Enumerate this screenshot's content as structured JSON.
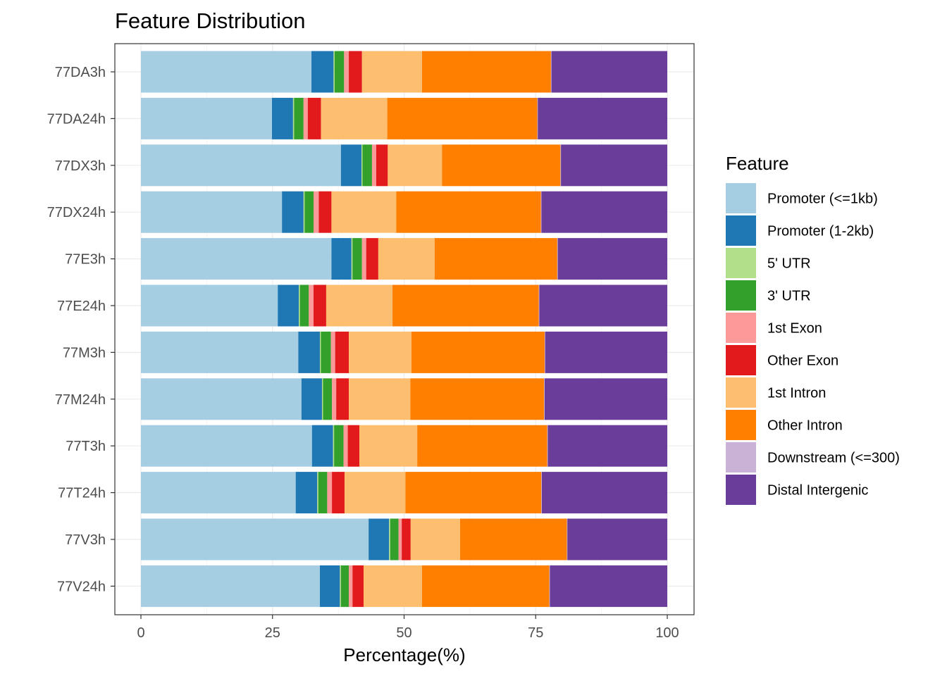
{
  "chart_data": {
    "type": "bar",
    "orientation": "horizontal",
    "stacked": true,
    "title": "Feature Distribution",
    "xlabel": "Percentage(%)",
    "ylabel": "",
    "xlim": [
      0,
      100
    ],
    "xticks": [
      0,
      25,
      50,
      75,
      100
    ],
    "grid": true,
    "legend_position": "right",
    "legend_title": "Feature",
    "categories": [
      "77DA3h",
      "77DA24h",
      "77DX3h",
      "77DX24h",
      "77E3h",
      "77E24h",
      "77M3h",
      "77M24h",
      "77T3h",
      "77T24h",
      "77V3h",
      "77V24h"
    ],
    "series": [
      {
        "name": "Promoter (<=1kb)",
        "color": "#A6CEE3",
        "values": [
          32.4,
          24.9,
          38.0,
          26.8,
          36.2,
          26.0,
          29.9,
          30.5,
          32.5,
          29.5,
          43.3,
          34.0
        ]
      },
      {
        "name": "Promoter (1-2kb)",
        "color": "#1F78B4",
        "values": [
          4.2,
          4.0,
          3.9,
          4.1,
          3.8,
          4.0,
          4.1,
          3.9,
          4.0,
          4.1,
          3.9,
          3.8
        ]
      },
      {
        "name": "5' UTR",
        "color": "#B2DF8A",
        "values": [
          0.2,
          0.2,
          0.2,
          0.2,
          0.2,
          0.2,
          0.2,
          0.2,
          0.2,
          0.2,
          0.2,
          0.2
        ]
      },
      {
        "name": "3' UTR",
        "color": "#33A02C",
        "values": [
          1.8,
          1.8,
          1.8,
          1.7,
          1.8,
          1.7,
          1.9,
          1.7,
          1.8,
          1.7,
          1.6,
          1.5
        ]
      },
      {
        "name": "1st Exon",
        "color": "#FB9A99",
        "values": [
          0.9,
          0.8,
          0.8,
          1.0,
          0.8,
          0.9,
          0.8,
          0.8,
          0.8,
          0.9,
          0.6,
          0.7
        ]
      },
      {
        "name": "Other Exon",
        "color": "#E31A1C",
        "values": [
          2.5,
          2.5,
          2.2,
          2.4,
          2.3,
          2.4,
          2.6,
          2.4,
          2.2,
          2.4,
          1.7,
          2.1
        ]
      },
      {
        "name": "1st Intron",
        "color": "#FDBF6F",
        "values": [
          11.4,
          12.6,
          10.3,
          12.3,
          10.7,
          12.6,
          11.9,
          11.7,
          11.0,
          11.6,
          9.4,
          11.1
        ]
      },
      {
        "name": "Other Intron",
        "color": "#FF7F00",
        "values": [
          24.5,
          28.5,
          22.5,
          27.5,
          23.3,
          27.8,
          25.3,
          25.4,
          24.7,
          25.9,
          20.3,
          24.2
        ]
      },
      {
        "name": "Downstream (<=300)",
        "color": "#CAB2D6",
        "values": [
          0.1,
          0.1,
          0.1,
          0.1,
          0.1,
          0.1,
          0.1,
          0.1,
          0.1,
          0.1,
          0.1,
          0.1
        ]
      },
      {
        "name": "Distal Intergenic",
        "color": "#6A3D9A",
        "values": [
          22.0,
          24.6,
          20.2,
          23.9,
          20.8,
          24.3,
          23.2,
          23.3,
          22.7,
          23.9,
          19.0,
          22.3
        ]
      }
    ]
  }
}
